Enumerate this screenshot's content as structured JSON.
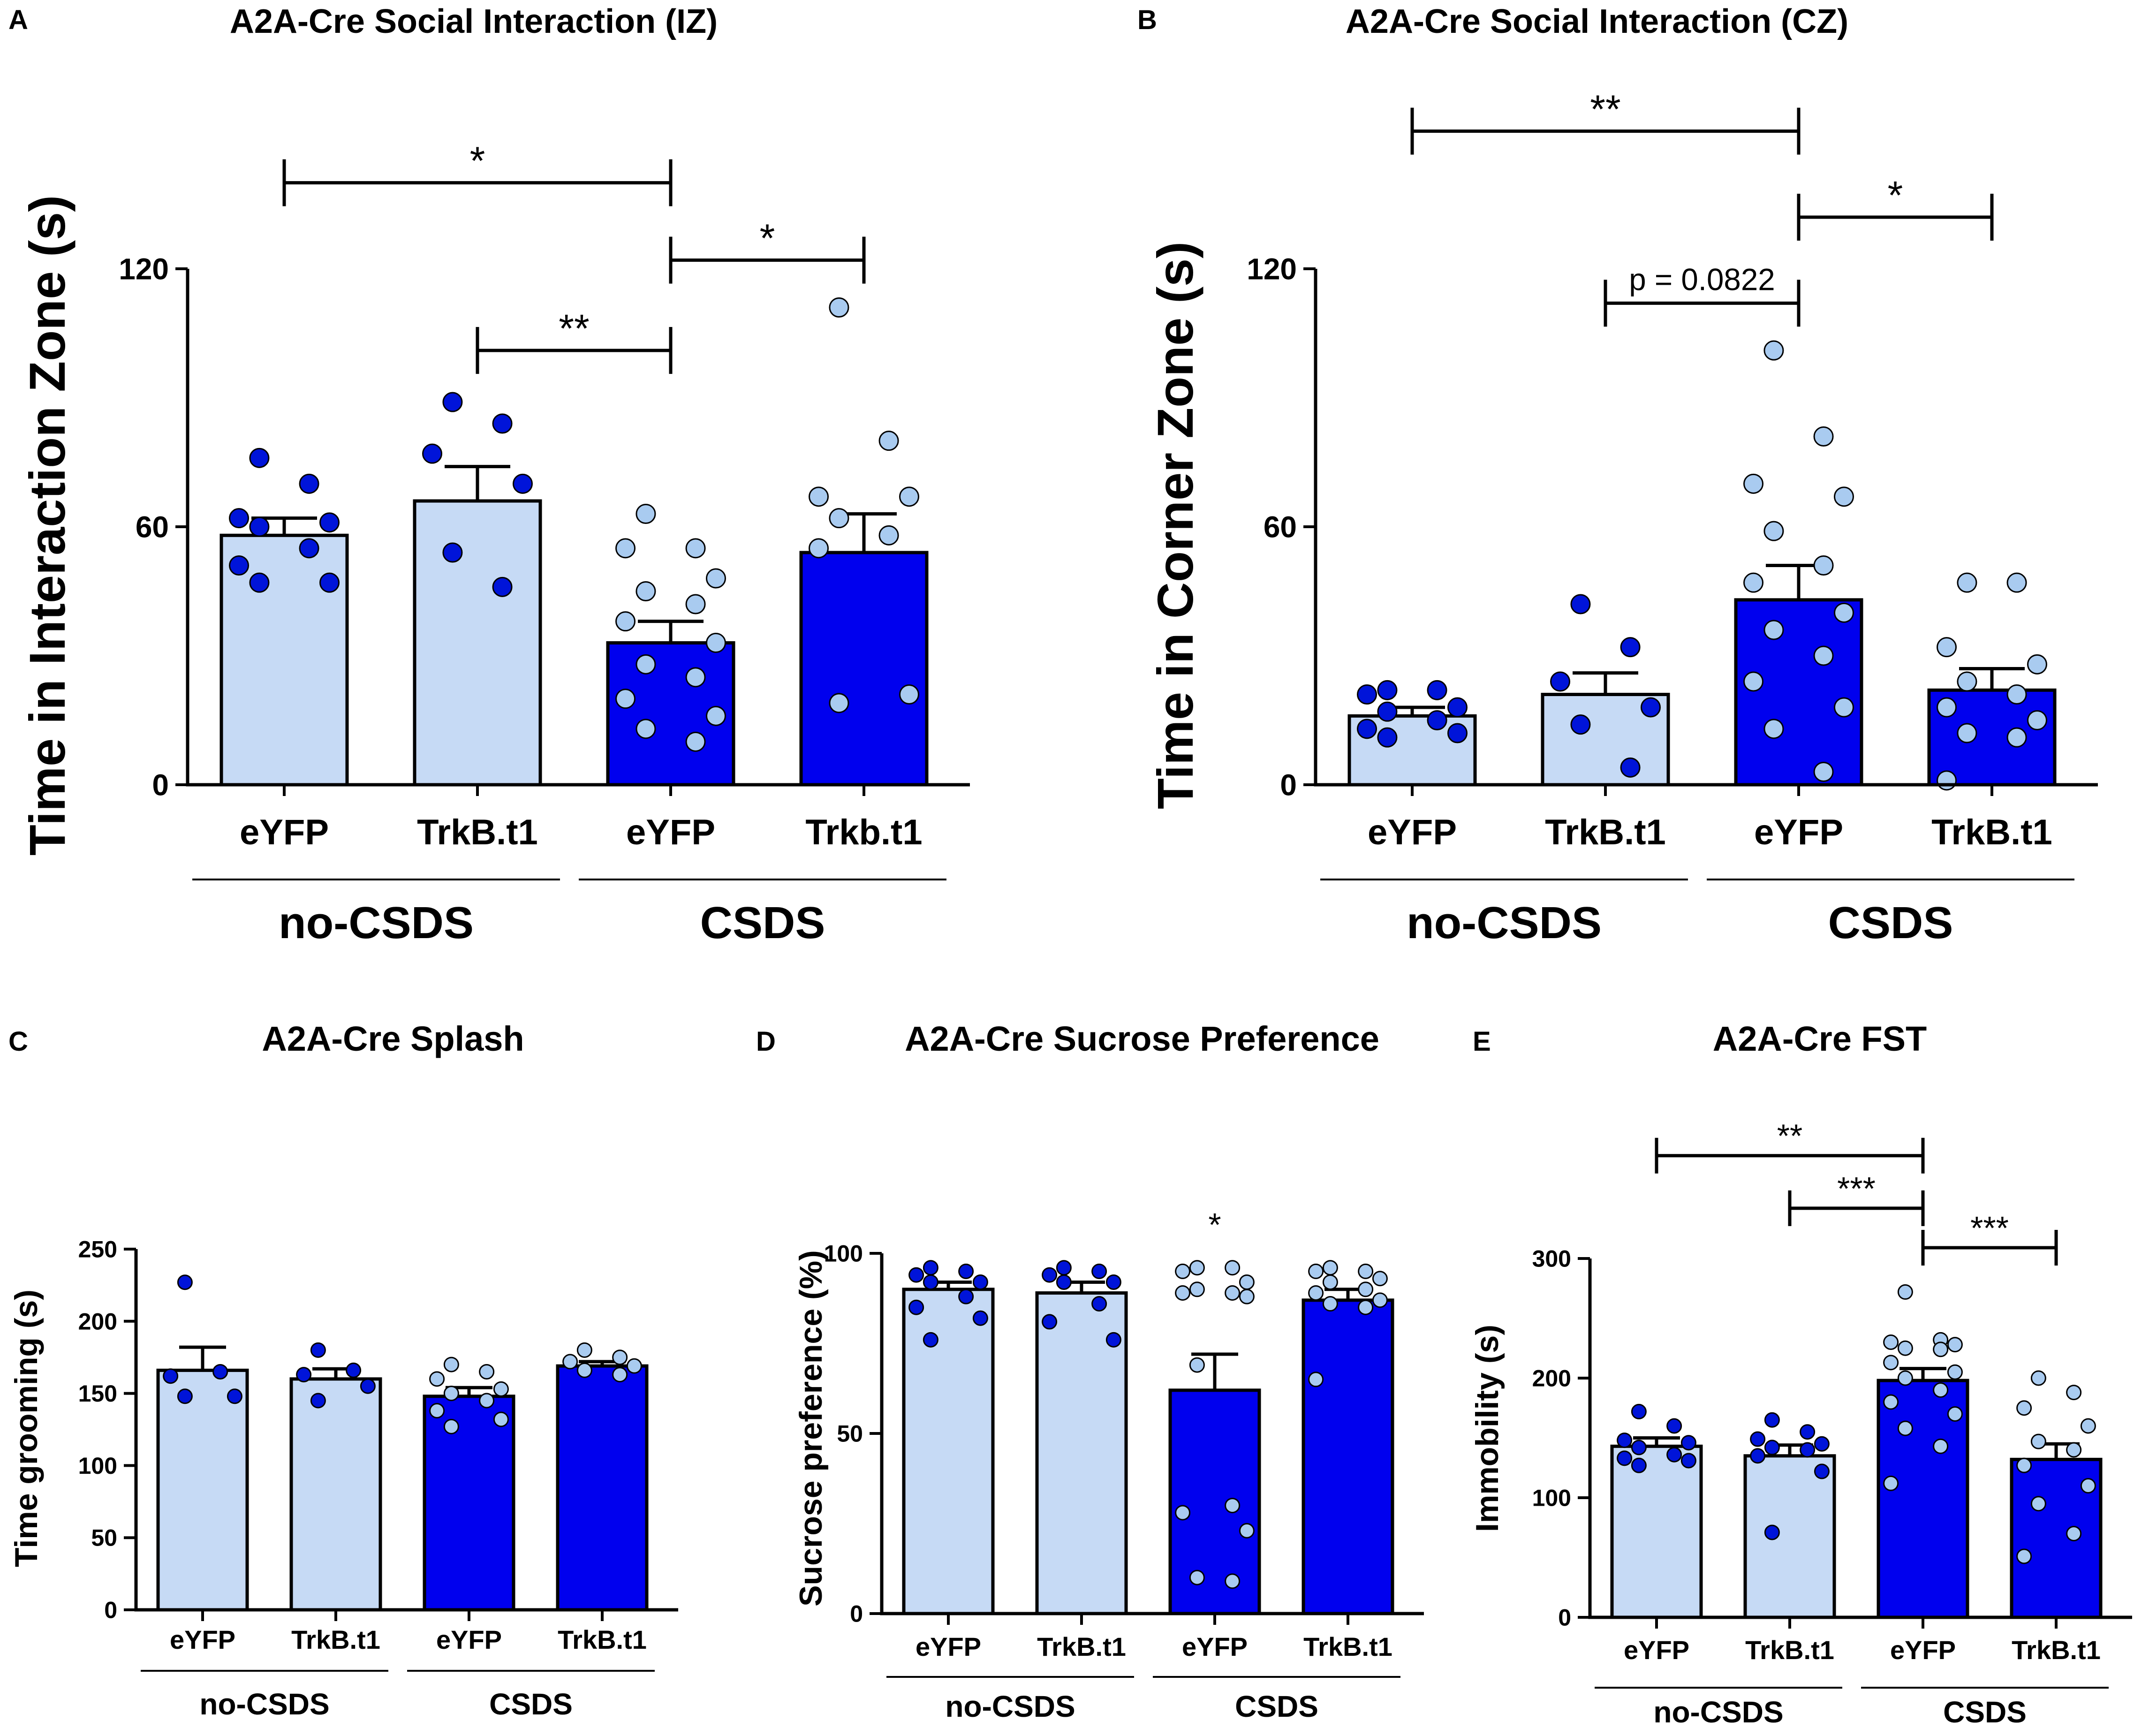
{
  "colors": {
    "light": "#c6daf5",
    "dark": "#0000ee",
    "light_dot": "#a9cbf0",
    "dark_dot": "#0014d9"
  },
  "chart_data": [
    {
      "id": "A",
      "panel_label": "A",
      "type": "bar",
      "title": "A2A-Cre Social Interaction (IZ)",
      "ylabel": "Time in Interaction Zone (s)",
      "xlabel": "",
      "ylim": [
        0,
        120
      ],
      "yticks": [
        0,
        60,
        120
      ],
      "categories": [
        "eYFP",
        "TrkB.t1",
        "eYFP",
        "Trkb.t1"
      ],
      "groups": [
        {
          "label": "no-CSDS",
          "from": 0,
          "to": 1
        },
        {
          "label": "CSDS",
          "from": 2,
          "to": 3
        }
      ],
      "values": [
        58,
        66,
        33,
        54
      ],
      "sem": [
        4,
        8,
        5,
        9
      ],
      "fill": [
        "light",
        "light",
        "dark",
        "dark"
      ],
      "dot_fill": [
        "dark_dot",
        "dark_dot",
        "light_dot",
        "light_dot"
      ],
      "points": [
        [
          76,
          70,
          62,
          61,
          60,
          55,
          51,
          47,
          47
        ],
        [
          89,
          84,
          77,
          70,
          54,
          46
        ],
        [
          63,
          55,
          55,
          48,
          45,
          42,
          38,
          33,
          28,
          25,
          20,
          16,
          13,
          10
        ],
        [
          111,
          80,
          67,
          67,
          62,
          58,
          55,
          21,
          19
        ]
      ],
      "significance": [
        {
          "from": 0,
          "to": 2,
          "label": "*",
          "level": 140
        },
        {
          "from": 1,
          "to": 2,
          "label": "**",
          "level": 101
        },
        {
          "from": 2,
          "to": 3,
          "label": "*",
          "level": 122
        }
      ]
    },
    {
      "id": "B",
      "panel_label": "B",
      "type": "bar",
      "title": "A2A-Cre Social Interaction (CZ)",
      "ylabel": "Time in Corner Zone (s)",
      "xlabel": "",
      "ylim": [
        0,
        120
      ],
      "yticks": [
        0,
        60,
        120
      ],
      "categories": [
        "eYFP",
        "TrkB.t1",
        "eYFP",
        "TrkB.t1"
      ],
      "groups": [
        {
          "label": "no-CSDS",
          "from": 0,
          "to": 1
        },
        {
          "label": "CSDS",
          "from": 2,
          "to": 3
        }
      ],
      "values": [
        16,
        21,
        43,
        22
      ],
      "sem": [
        2,
        5,
        8,
        5
      ],
      "fill": [
        "light",
        "light",
        "dark",
        "dark"
      ],
      "dot_fill": [
        "dark_dot",
        "dark_dot",
        "light_dot",
        "light_dot"
      ],
      "points": [
        [
          22,
          22,
          21,
          18,
          17,
          15,
          13,
          12,
          11
        ],
        [
          42,
          32,
          24,
          18,
          14,
          4
        ],
        [
          101,
          81,
          70,
          67,
          59,
          51,
          47,
          40,
          36,
          30,
          24,
          18,
          13,
          3
        ],
        [
          47,
          47,
          32,
          28,
          24,
          21,
          18,
          15,
          12,
          11,
          1
        ]
      ],
      "significance": [
        {
          "from": 0,
          "to": 2,
          "label": "**",
          "level": 152
        },
        {
          "from": 2,
          "to": 3,
          "label": "*",
          "level": 132
        },
        {
          "from": 1,
          "to": 2,
          "label": "p = 0.0822",
          "level": 112
        }
      ]
    },
    {
      "id": "C",
      "panel_label": "C",
      "type": "bar",
      "title": "A2A-Cre Splash",
      "ylabel": "Time grooming (s)",
      "xlabel": "",
      "ylim": [
        0,
        250
      ],
      "yticks": [
        0,
        50,
        100,
        150,
        200,
        250
      ],
      "categories": [
        "eYFP",
        "TrkB.t1",
        "eYFP",
        "TrkB.t1"
      ],
      "groups": [
        {
          "label": "no-CSDS",
          "from": 0,
          "to": 1
        },
        {
          "label": "CSDS",
          "from": 2,
          "to": 3
        }
      ],
      "values": [
        166,
        160,
        148,
        169
      ],
      "sem": [
        16,
        7,
        6,
        3
      ],
      "fill": [
        "light",
        "light",
        "dark",
        "dark"
      ],
      "dot_fill": [
        "dark_dot",
        "dark_dot",
        "light_dot",
        "light_dot"
      ],
      "points": [
        [
          227,
          165,
          162,
          148,
          148
        ],
        [
          180,
          166,
          163,
          155,
          145
        ],
        [
          170,
          165,
          160,
          153,
          150,
          145,
          138,
          132,
          127
        ],
        [
          180,
          175,
          172,
          169,
          166,
          163
        ]
      ],
      "significance": []
    },
    {
      "id": "D",
      "panel_label": "D",
      "type": "bar",
      "title": "A2A-Cre Sucrose Preference",
      "ylabel": "Sucrose preference (%)",
      "xlabel": "",
      "ylim": [
        0,
        100
      ],
      "yticks": [
        0,
        50,
        100
      ],
      "categories": [
        "eYFP",
        "TrkB.t1",
        "eYFP",
        "TrkB.t1"
      ],
      "groups": [
        {
          "label": "no-CSDS",
          "from": 0,
          "to": 1
        },
        {
          "label": "CSDS",
          "from": 2,
          "to": 3
        }
      ],
      "values": [
        90,
        89,
        62,
        87
      ],
      "sem": [
        2,
        3,
        10,
        3
      ],
      "fill": [
        "light",
        "light",
        "dark",
        "dark"
      ],
      "dot_fill": [
        "dark_dot",
        "dark_dot",
        "light_dot",
        "light_dot"
      ],
      "points": [
        [
          96,
          95,
          94,
          92,
          92,
          88,
          85,
          82,
          76
        ],
        [
          96,
          95,
          94,
          92,
          92,
          86,
          81,
          76
        ],
        [
          96,
          96,
          95,
          92,
          90,
          89,
          89,
          88,
          69,
          30,
          28,
          23,
          10,
          9
        ],
        [
          96,
          95,
          95,
          93,
          92,
          90,
          89,
          87,
          86,
          85,
          65
        ]
      ],
      "significance": [
        {
          "at": 2,
          "label": "*",
          "value": 108
        }
      ]
    },
    {
      "id": "E",
      "panel_label": "E",
      "type": "bar",
      "title": "A2A-Cre FST",
      "ylabel": "Immobility (s)",
      "xlabel": "",
      "ylim": [
        0,
        300
      ],
      "yticks": [
        0,
        100,
        200,
        300
      ],
      "categories": [
        "eYFP",
        "TrkB.t1",
        "eYFP",
        "TrkB.t1"
      ],
      "groups": [
        {
          "label": "no-CSDS",
          "from": 0,
          "to": 1
        },
        {
          "label": "CSDS",
          "from": 2,
          "to": 3
        }
      ],
      "values": [
        143,
        135,
        198,
        132
      ],
      "sem": [
        7,
        9,
        10,
        13
      ],
      "fill": [
        "light",
        "light",
        "dark",
        "dark"
      ],
      "dot_fill": [
        "dark_dot",
        "dark_dot",
        "light_dot",
        "light_dot"
      ],
      "points": [
        [
          172,
          160,
          148,
          146,
          142,
          136,
          133,
          131,
          127
        ],
        [
          165,
          155,
          149,
          145,
          142,
          140,
          135,
          122,
          71
        ],
        [
          272,
          232,
          230,
          228,
          225,
          224,
          213,
          205,
          200,
          190,
          180,
          170,
          158,
          143,
          112
        ],
        [
          200,
          188,
          175,
          160,
          147,
          140,
          127,
          110,
          95,
          70,
          51
        ]
      ],
      "significance": [
        {
          "from": 0,
          "to": 2,
          "label": "**",
          "level": 386
        },
        {
          "from": 1,
          "to": 2,
          "label": "***",
          "level": 342
        },
        {
          "from": 2,
          "to": 3,
          "label": "***",
          "level": 309
        }
      ]
    }
  ]
}
